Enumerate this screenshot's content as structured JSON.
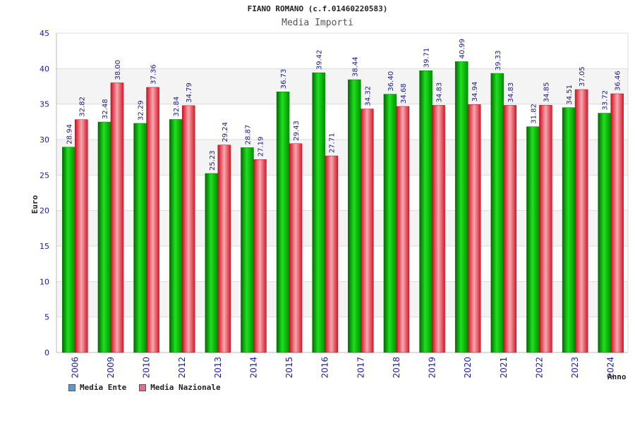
{
  "chart_data": {
    "type": "bar",
    "title": "FIANO ROMANO (c.f.01460220583)",
    "subtitle": "Media Importi",
    "xlabel": "Anno",
    "ylabel": "Euro",
    "ylim": [
      0,
      45
    ],
    "yticks": [
      0,
      5,
      10,
      15,
      20,
      25,
      30,
      35,
      40,
      45
    ],
    "categories": [
      "2006",
      "2009",
      "2010",
      "2012",
      "2013",
      "2014",
      "2015",
      "2016",
      "2017",
      "2018",
      "2019",
      "2020",
      "2021",
      "2022",
      "2023",
      "2024"
    ],
    "series": [
      {
        "name": "Media Ente",
        "values": [
          28.94,
          32.48,
          32.29,
          32.84,
          25.23,
          28.87,
          36.73,
          39.42,
          38.44,
          36.4,
          39.71,
          40.99,
          39.33,
          31.82,
          34.51,
          33.72
        ],
        "labels": [
          "28.94",
          "32.48",
          "32.29",
          "32.84",
          "25.23",
          "28.87",
          "36.73",
          "39.42",
          "38.44",
          "36.40",
          "39.71",
          "40.99",
          "39.33",
          "31.82",
          "34.51",
          "33.72"
        ],
        "color": "#00b000",
        "legend_color": "#5b9bd5"
      },
      {
        "name": "Media Nazionale",
        "values": [
          32.82,
          38.0,
          37.36,
          34.79,
          29.24,
          27.19,
          29.43,
          27.71,
          34.32,
          34.68,
          34.83,
          34.94,
          34.83,
          34.85,
          37.05,
          36.46
        ],
        "labels": [
          "32.82",
          "38.00",
          "37.36",
          "34.79",
          "29.24",
          "27.19",
          "29.43",
          "27.71",
          "34.32",
          "34.68",
          "34.83",
          "34.94",
          "34.83",
          "34.85",
          "37.05",
          "36.46"
        ],
        "color": "#e8293a",
        "legend_color": "#e06a9a"
      }
    ],
    "grid": true,
    "legend_position": "bottom-left"
  }
}
